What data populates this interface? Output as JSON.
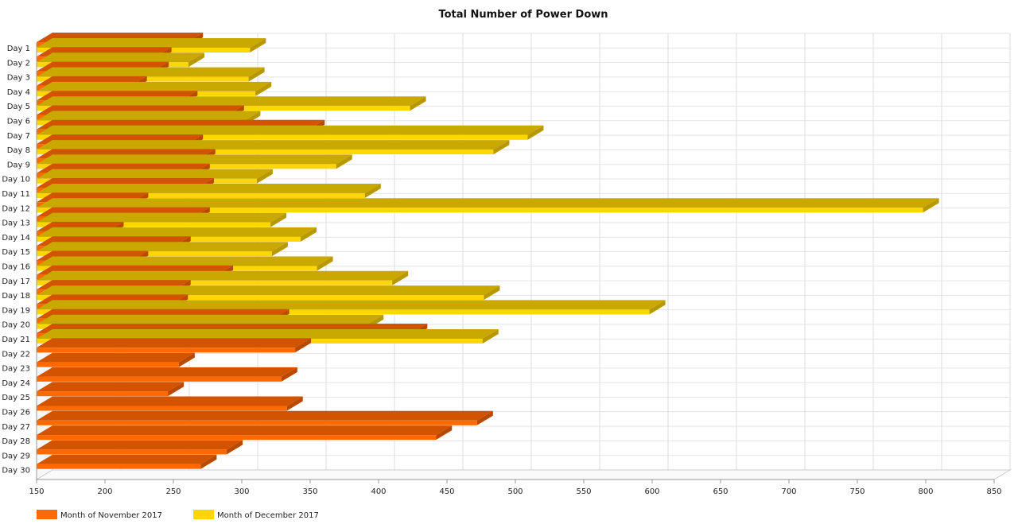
{
  "chart_data": {
    "type": "bar",
    "orientation": "horizontal",
    "style": "3d",
    "title": "Total Number of Power Down",
    "xlabel": "",
    "ylabel": "",
    "xlim": [
      150,
      850
    ],
    "x_ticks": [
      150,
      200,
      250,
      300,
      350,
      400,
      450,
      500,
      550,
      600,
      650,
      700,
      750,
      800,
      850
    ],
    "grid": true,
    "legend_position": "bottom-left",
    "categories": [
      "Day 1",
      "Day 2",
      "Day 3",
      "Day 4",
      "Day 5",
      "Day 6",
      "Day 7",
      "Day 8",
      "Day 9",
      "Day 10",
      "Day 11",
      "Day 12",
      "Day 13",
      "Day 14",
      "Day 15",
      "Day 16",
      "Day 17",
      "Day 18",
      "Day 19",
      "Day 20",
      "Day 21",
      "Day 22",
      "Day 23",
      "Day 24",
      "Day 25",
      "Day 26",
      "Day 27",
      "Day 28",
      "Day 29",
      "Day 30"
    ],
    "series": [
      {
        "name": "Month of November 2017",
        "color": "#ff6a00",
        "top_color": "#d35400",
        "values": [
          260,
          237,
          235,
          219,
          256,
          290,
          349,
          260,
          269,
          265,
          268,
          220,
          265,
          202,
          251,
          220,
          282,
          251,
          249,
          323,
          424,
          339,
          254,
          329,
          246,
          333,
          472,
          442,
          289,
          270
        ]
      },
      {
        "name": "Month of December 2017",
        "color": "#ffd700",
        "top_color": "#c9a800",
        "values": [
          306,
          261,
          305,
          310,
          423,
          302,
          509,
          484,
          369,
          311,
          390,
          798,
          321,
          343,
          322,
          355,
          410,
          477,
          598,
          392,
          476,
          null,
          null,
          null,
          null,
          null,
          null,
          null,
          null,
          null
        ]
      }
    ]
  }
}
